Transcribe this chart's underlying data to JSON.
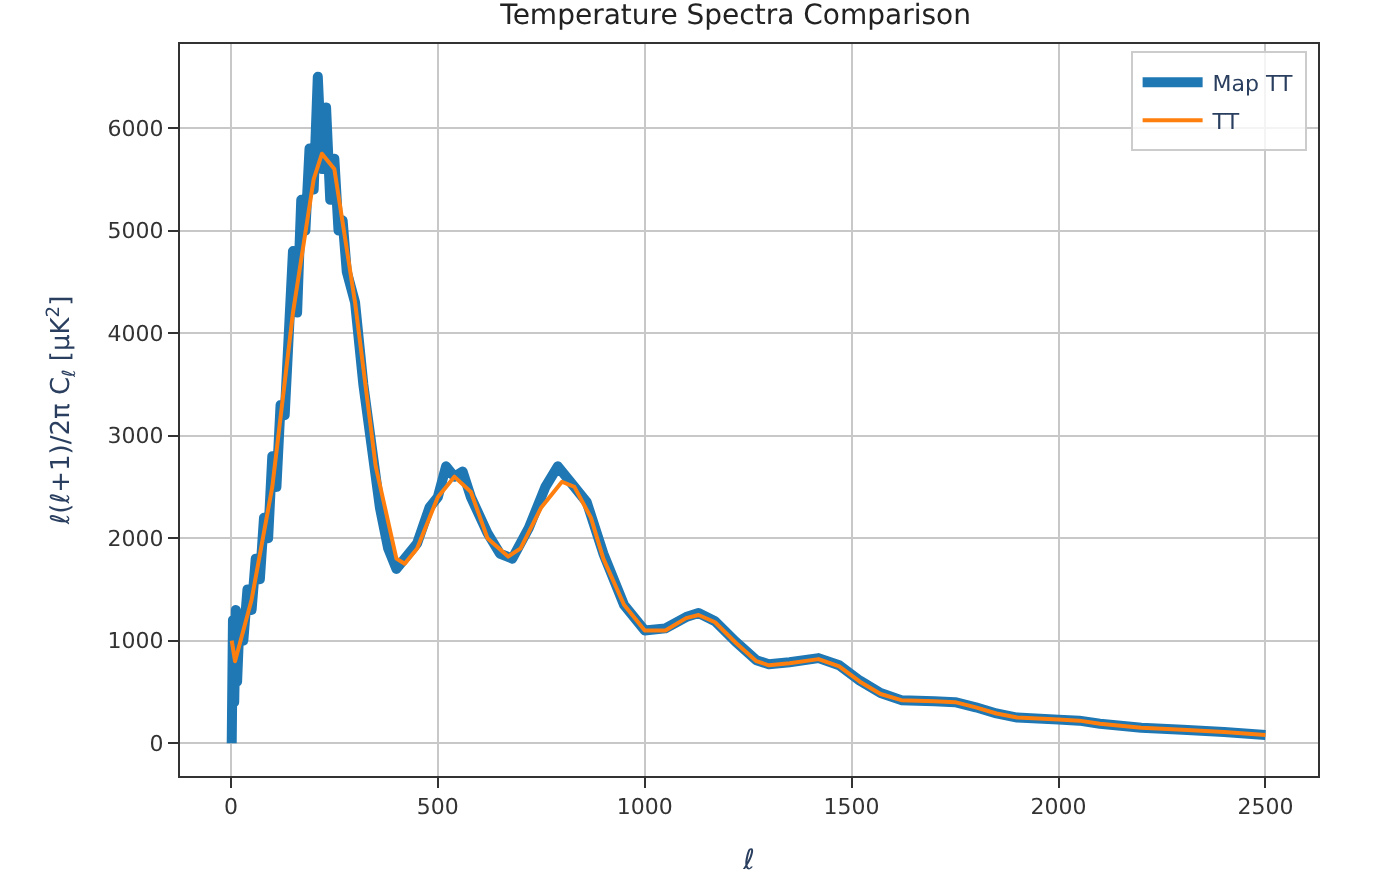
{
  "chart_data": {
    "type": "line",
    "title": "Temperature Spectra Comparison",
    "xlabel": "ℓ",
    "ylabel": "ℓ(ℓ+1)/2π C$_{ℓ}$ [μK$^{2}$]",
    "xlim": [
      -123,
      2627
    ],
    "xticks": [
      0,
      500,
      1000,
      1500,
      2000,
      2500
    ],
    "ylim": [
      -320,
      6820
    ],
    "yticks": [
      0,
      1000,
      2000,
      3000,
      4000,
      5000,
      6000
    ],
    "grid": true,
    "legend": "top right",
    "series": [
      {
        "name": "Map TT",
        "color": "#1f77b4",
        "x": [
          2,
          5,
          8,
          12,
          15,
          20,
          30,
          40,
          50,
          60,
          70,
          80,
          90,
          100,
          110,
          120,
          130,
          140,
          150,
          160,
          170,
          180,
          190,
          200,
          210,
          220,
          230,
          240,
          250,
          260,
          270,
          280,
          300,
          320,
          340,
          360,
          380,
          400,
          420,
          450,
          480,
          500,
          520,
          540,
          560,
          580,
          620,
          650,
          680,
          720,
          760,
          790,
          820,
          860,
          900,
          950,
          1000,
          1050,
          1100,
          1130,
          1170,
          1220,
          1270,
          1300,
          1350,
          1420,
          1470,
          1520,
          1570,
          1620,
          1700,
          1750,
          1800,
          1850,
          1900,
          2000,
          2050,
          2100,
          2200,
          2300,
          2400,
          2500
        ],
        "values": [
          0,
          1200,
          400,
          1300,
          600,
          1100,
          1000,
          1500,
          1300,
          1800,
          1600,
          2200,
          2000,
          2800,
          2500,
          3300,
          3200,
          4000,
          4800,
          4200,
          5300,
          5000,
          5800,
          5400,
          6500,
          5600,
          6200,
          5300,
          5700,
          5000,
          5100,
          4600,
          4300,
          3500,
          2900,
          2300,
          1900,
          1700,
          1800,
          1950,
          2300,
          2400,
          2700,
          2600,
          2650,
          2400,
          2050,
          1850,
          1800,
          2100,
          2500,
          2700,
          2550,
          2350,
          1850,
          1350,
          1100,
          1120,
          1230,
          1270,
          1190,
          990,
          810,
          770,
          790,
          830,
          760,
          610,
          490,
          420,
          410,
          400,
          350,
          290,
          250,
          230,
          220,
          190,
          150,
          130,
          110,
          80
        ]
      },
      {
        "name": "TT",
        "color": "#ff7f0e",
        "x": [
          2,
          10,
          50,
          100,
          150,
          200,
          220,
          250,
          300,
          350,
          400,
          420,
          450,
          500,
          540,
          580,
          620,
          670,
          700,
          750,
          800,
          830,
          870,
          900,
          950,
          1000,
          1050,
          1100,
          1130,
          1170,
          1220,
          1270,
          1300,
          1350,
          1420,
          1470,
          1520,
          1570,
          1620,
          1700,
          1750,
          1800,
          1850,
          1900,
          2000,
          2050,
          2100,
          2200,
          2300,
          2400,
          2500
        ],
        "values": [
          1000,
          800,
          1400,
          2500,
          4200,
          5500,
          5750,
          5600,
          4300,
          2700,
          1800,
          1750,
          1900,
          2400,
          2600,
          2450,
          2000,
          1820,
          1900,
          2300,
          2550,
          2500,
          2200,
          1800,
          1350,
          1100,
          1100,
          1220,
          1250,
          1180,
          980,
          800,
          760,
          780,
          820,
          750,
          600,
          480,
          420,
          410,
          400,
          350,
          290,
          250,
          230,
          220,
          190,
          150,
          130,
          110,
          80
        ]
      }
    ]
  }
}
